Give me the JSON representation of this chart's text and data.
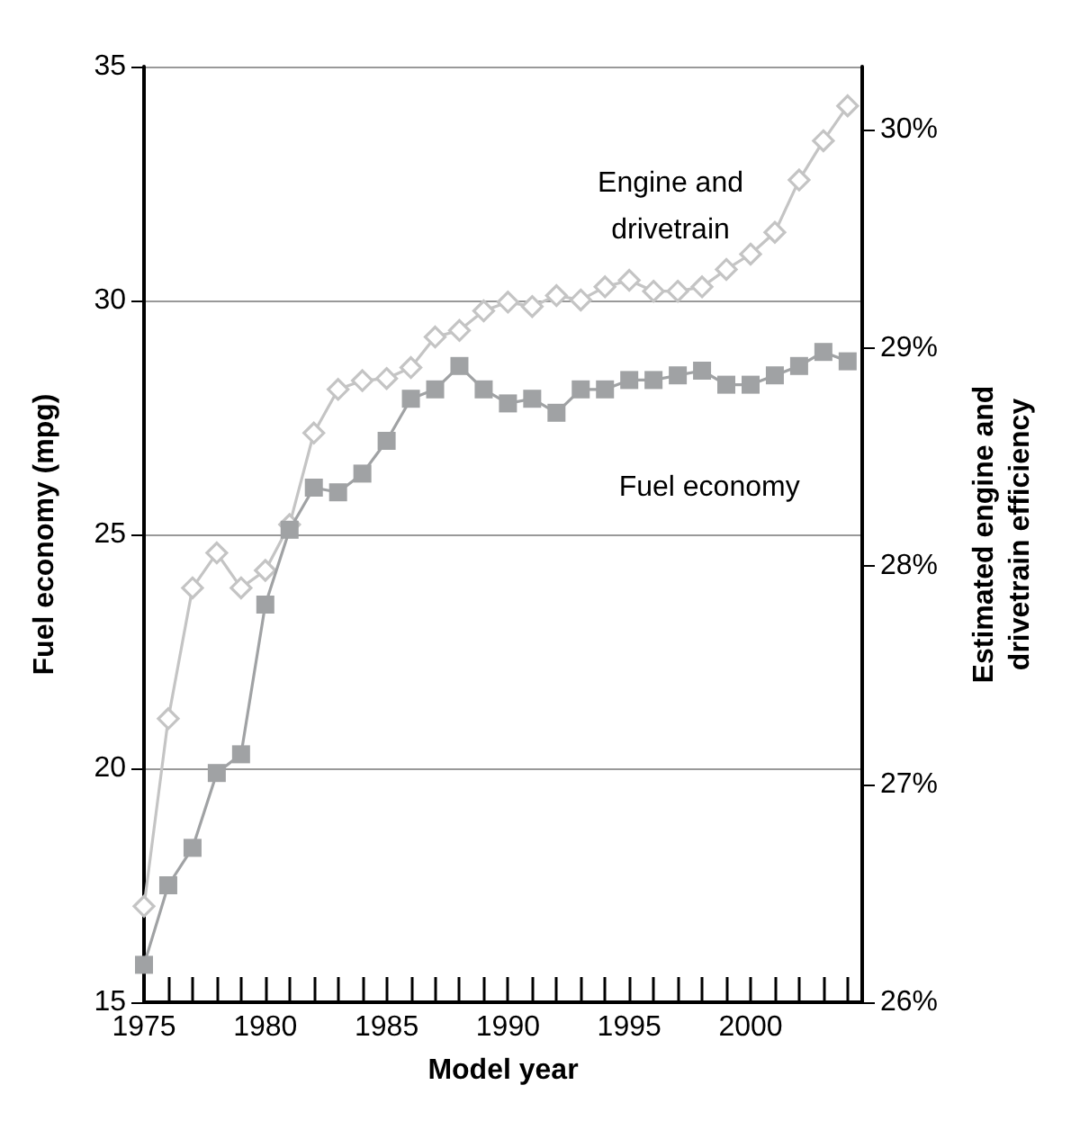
{
  "chart_data": {
    "type": "line",
    "xlabel": "Model year",
    "ylabel": "Fuel economy (mpg)",
    "y2label": "Estimated engine and\ndrivetrain efficiency",
    "x": [
      1975,
      1976,
      1977,
      1978,
      1979,
      1980,
      1981,
      1982,
      1983,
      1984,
      1985,
      1986,
      1987,
      1988,
      1989,
      1990,
      1991,
      1992,
      1993,
      1994,
      1995,
      1996,
      1997,
      1998,
      1999,
      2000,
      2001,
      2002,
      2003,
      2004
    ],
    "series": [
      {
        "name": "Engine and\ndrivetrain",
        "color": "#c4c4c4",
        "marker": "diamond",
        "axis": "y2",
        "values": [
          26.44,
          27.3,
          27.9,
          28.06,
          27.9,
          27.98,
          28.19,
          28.61,
          28.81,
          28.85,
          28.86,
          28.91,
          29.05,
          29.08,
          29.17,
          29.21,
          29.19,
          29.24,
          29.22,
          29.28,
          29.31,
          29.26,
          29.26,
          29.28,
          29.36,
          29.43,
          29.53,
          29.77,
          29.95,
          30.11
        ]
      },
      {
        "name": "Fuel economy",
        "color": "#a0a2a4",
        "marker": "square",
        "values": [
          15.8,
          17.5,
          18.3,
          19.9,
          20.3,
          23.5,
          25.1,
          26.0,
          25.9,
          26.3,
          27.0,
          27.9,
          28.1,
          28.6,
          28.1,
          27.8,
          27.9,
          27.6,
          28.1,
          28.1,
          28.3,
          28.3,
          28.4,
          28.5,
          28.2,
          28.2,
          28.4,
          28.6,
          28.9,
          28.7
        ]
      }
    ],
    "xlim": [
      1975,
      2004.6
    ],
    "xticks": [
      1975,
      {
        "value": 1976,
        "label": null
      },
      {
        "value": 1977,
        "label": null
      },
      {
        "value": 1978,
        "label": null
      },
      {
        "value": 1979,
        "label": null
      },
      1980,
      {
        "value": 1981,
        "label": null
      },
      {
        "value": 1982,
        "label": null
      },
      {
        "value": 1983,
        "label": null
      },
      {
        "value": 1984,
        "label": null
      },
      1985,
      {
        "value": 1986,
        "label": null
      },
      {
        "value": 1987,
        "label": null
      },
      {
        "value": 1988,
        "label": null
      },
      {
        "value": 1989,
        "label": null
      },
      1990,
      {
        "value": 1991,
        "label": null
      },
      {
        "value": 1992,
        "label": null
      },
      {
        "value": 1993,
        "label": null
      },
      {
        "value": 1994,
        "label": null
      },
      1995,
      {
        "value": 1996,
        "label": null
      },
      {
        "value": 1997,
        "label": null
      },
      {
        "value": 1998,
        "label": null
      },
      {
        "value": 1999,
        "label": null
      },
      2000,
      {
        "value": 2001,
        "label": null
      },
      {
        "value": 2002,
        "label": null
      },
      {
        "value": 2003,
        "label": null
      },
      {
        "value": 2004,
        "label": null
      }
    ],
    "ylim": [
      15,
      35
    ],
    "yticks": [
      15,
      20,
      25,
      30,
      35
    ],
    "y2lim": [
      26,
      30.29
    ],
    "y2ticks": [
      {
        "value": 26,
        "label": "26%"
      },
      {
        "value": 27,
        "label": "27%"
      },
      {
        "value": 28,
        "label": "28%"
      },
      {
        "value": 29,
        "label": "29%"
      },
      {
        "value": 30,
        "label": "30%"
      }
    ],
    "grid": "y",
    "legend": false,
    "line_style": "solid"
  }
}
